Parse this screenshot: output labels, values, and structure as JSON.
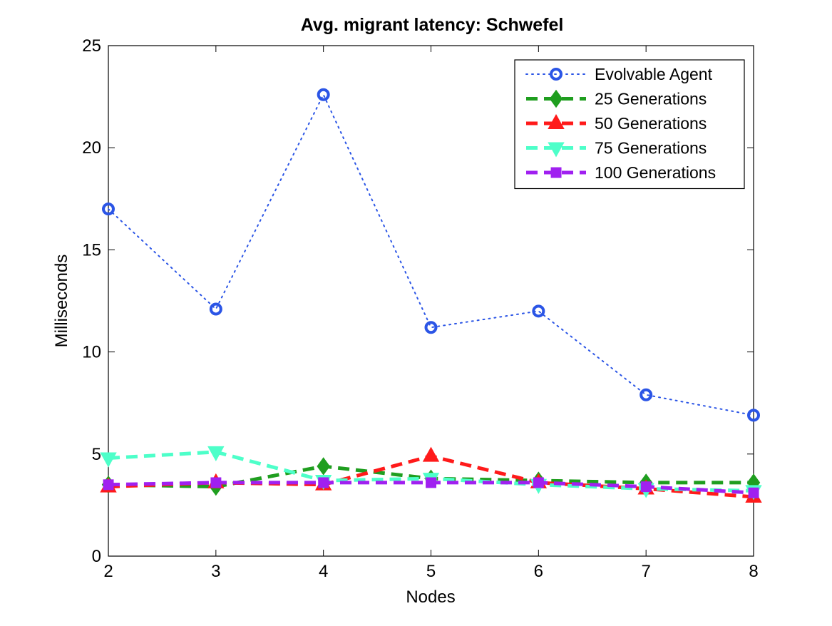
{
  "chart_data": {
    "type": "line",
    "title": "Avg. migrant latency: Schwefel",
    "xlabel": "Nodes",
    "ylabel": "Milliseconds",
    "x": [
      2,
      3,
      4,
      5,
      6,
      7,
      8
    ],
    "xlim": [
      2,
      8
    ],
    "ylim": [
      0,
      25
    ],
    "xticks": [
      2,
      3,
      4,
      5,
      6,
      7,
      8
    ],
    "yticks": [
      0,
      5,
      10,
      15,
      20,
      25
    ],
    "grid": false,
    "legend_position": "top-right",
    "series": [
      {
        "name": "Evolvable Agent",
        "color": "#2b55e6",
        "dash": "dotted",
        "marker": "circle",
        "values": [
          17.0,
          12.1,
          22.6,
          11.2,
          12.0,
          7.9,
          6.9
        ]
      },
      {
        "name": "25 Generations",
        "color": "#1f9e1f",
        "dash": "dashed",
        "marker": "diamond",
        "values": [
          3.5,
          3.4,
          4.4,
          3.8,
          3.7,
          3.6,
          3.6
        ]
      },
      {
        "name": "50 Generations",
        "color": "#ff1a1a",
        "dash": "dashed",
        "marker": "triangle-up",
        "values": [
          3.4,
          3.6,
          3.5,
          4.9,
          3.6,
          3.3,
          2.9
        ]
      },
      {
        "name": "75 Generations",
        "color": "#4dffc9",
        "dash": "dashed",
        "marker": "triangle-down",
        "values": [
          4.8,
          5.1,
          3.7,
          3.8,
          3.5,
          3.3,
          3.2
        ]
      },
      {
        "name": "100 Generations",
        "color": "#a020f0",
        "dash": "dashed",
        "marker": "square",
        "values": [
          3.5,
          3.6,
          3.6,
          3.6,
          3.6,
          3.4,
          3.1
        ]
      }
    ]
  }
}
